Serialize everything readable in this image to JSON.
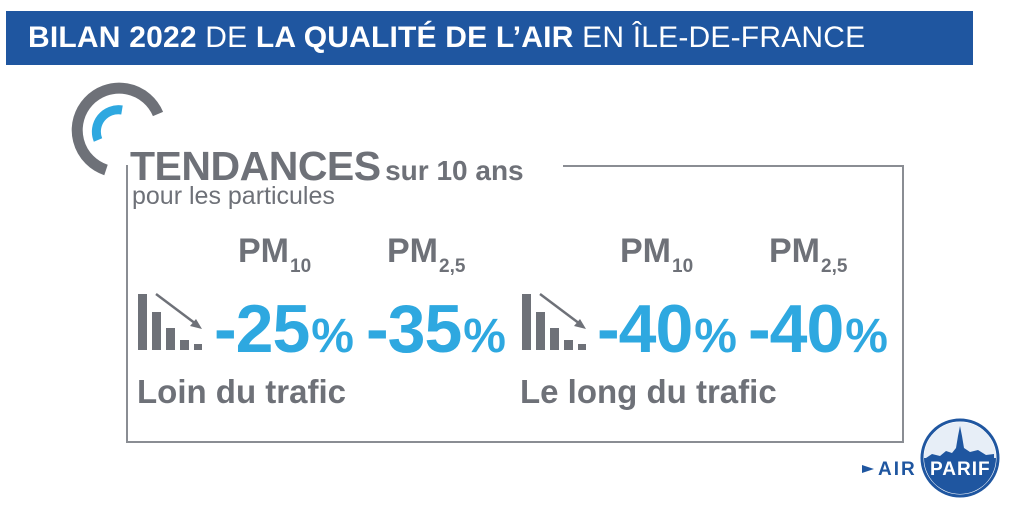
{
  "banner": {
    "part1": "BILAN 2022",
    "part2": " DE ",
    "part3": "LA QUALITÉ DE L’AIR",
    "part4": " EN ÎLE-DE-FRANCE"
  },
  "section": {
    "title_big": "TENDANCES",
    "title_small": "sur 10 ans",
    "subtitle": "pour les particules"
  },
  "groups": [
    {
      "label": "Loin du trafic",
      "items": [
        {
          "pm": "PM",
          "sub": "10",
          "value": "-25",
          "unit": "%"
        },
        {
          "pm": "PM",
          "sub": "2,5",
          "value": "-35",
          "unit": "%"
        }
      ]
    },
    {
      "label": "Le long du trafic",
      "items": [
        {
          "pm": "PM",
          "sub": "10",
          "value": "-40",
          "unit": "%"
        },
        {
          "pm": "PM",
          "sub": "2,5",
          "value": "-40",
          "unit": "%"
        }
      ]
    }
  ],
  "logo": {
    "part1": "AIR",
    "part2": "PARIF"
  },
  "colors": {
    "banner": "#1f56a0",
    "accent": "#2ea8e0",
    "text": "#6e7178"
  }
}
